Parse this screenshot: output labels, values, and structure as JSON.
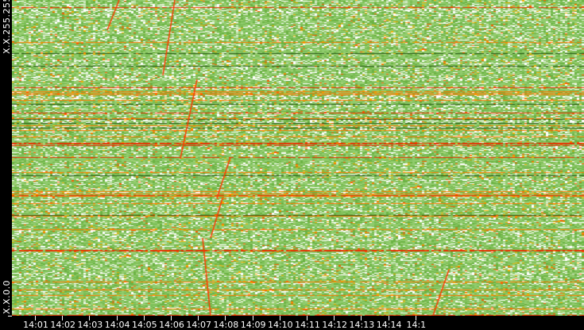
{
  "chart_data": {
    "type": "heatmap",
    "title": "",
    "xlabel": "",
    "ylabel": "",
    "x_tick_labels": [
      "14:01",
      "14:02",
      "14:03",
      "14:04",
      "14:05",
      "14:06",
      "14:07",
      "14:08",
      "14:09",
      "14:10",
      "14:11",
      "14:12",
      "14:13",
      "14:14",
      "14:1"
    ],
    "y_tick_labels": {
      "top": "X.X.255.255",
      "bottom": "X.X.0.0"
    },
    "xlim": [
      "14:00",
      "14:15"
    ],
    "color_scale": [
      "#ffffff",
      "#8fc86a",
      "#5aa832",
      "#ffb000",
      "#ff5a00",
      "#e00000"
    ],
    "background": "#000000",
    "grid": false,
    "legend": "none"
  }
}
